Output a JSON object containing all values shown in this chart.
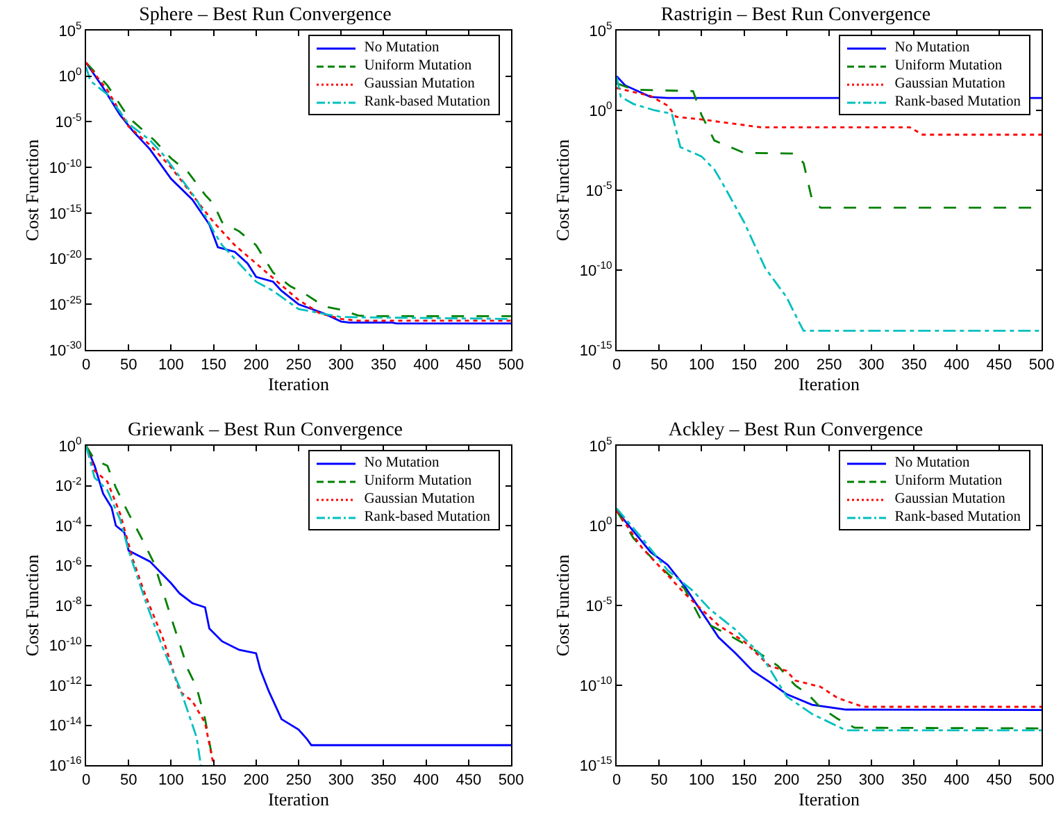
{
  "chart_data": [
    {
      "type": "line",
      "title": "Sphere – Best Run Convergence",
      "xlabel": "Iteration",
      "ylabel": "Cost Function",
      "log": "y",
      "grid": false,
      "legend": "top right",
      "marker": "none",
      "xlim": [
        0,
        500
      ],
      "xticks": [
        0,
        50,
        100,
        150,
        200,
        250,
        300,
        350,
        400,
        450,
        500
      ],
      "ylim": [
        1e-30,
        100000.0
      ],
      "yticks": [
        {
          "value": 1e-30,
          "label": "10$^{-30}$"
        },
        {
          "value": 1e-25,
          "label": "10$^{-25}$"
        },
        {
          "value": 1e-20,
          "label": "10$^{-20}$"
        },
        {
          "value": 1e-15,
          "label": "10$^{-15}$"
        },
        {
          "value": 1e-10,
          "label": "10$^{-10}$"
        },
        {
          "value": 1e-05,
          "label": "10$^{-5}$"
        },
        {
          "value": 1,
          "label": "10$^{0}$"
        },
        {
          "value": 100000.0,
          "label": "10$^{5}$"
        }
      ],
      "series": [
        {
          "name": "No Mutation",
          "color": "#0000ff",
          "line_style": "solid",
          "x": [
            0,
            20,
            40,
            55,
            75,
            100,
            125,
            145,
            155,
            175,
            190,
            200,
            220,
            230,
            250,
            280,
            300,
            310,
            360,
            365,
            500
          ],
          "values": [
            30,
            0.056,
            5.6e-05,
            1e-06,
            1e-08,
            5.6e-12,
            3e-14,
            5.6e-17,
            1.8e-19,
            5.6e-20,
            3e-21,
            1e-22,
            3e-23,
            3e-24,
            1e-25,
            1e-26,
            1.3e-27,
            1e-27,
            1e-27,
            8e-28,
            8e-28
          ]
        },
        {
          "name": "Uniform Mutation",
          "color": "#008000",
          "line_style": "dashed",
          "x": [
            0,
            25,
            50,
            80,
            100,
            120,
            140,
            150,
            160,
            180,
            200,
            220,
            240,
            260,
            280,
            300,
            320,
            330,
            500
          ],
          "values": [
            30,
            0.1,
            3e-05,
            1e-07,
            1e-09,
            3e-11,
            1e-13,
            1e-14,
            1e-16,
            1e-17,
            3e-19,
            3e-22,
            1e-23,
            1e-24,
            6e-26,
            2.5e-26,
            6e-27,
            5e-27,
            5e-27
          ]
        },
        {
          "name": "Gaussian Mutation",
          "color": "#ff0000",
          "line_style": "dotted",
          "x": [
            0,
            25,
            50,
            75,
            100,
            125,
            150,
            175,
            200,
            225,
            250,
            275,
            300,
            320,
            500
          ],
          "values": [
            30,
            0.03,
            3e-06,
            3e-08,
            1e-10,
            1e-13,
            1e-16,
            3e-19,
            3e-21,
            3e-23,
            3e-25,
            1e-26,
            2.5e-27,
            1.6e-27,
            1.6e-27
          ]
        },
        {
          "name": "Rank-based Mutation",
          "color": "#00bfbf",
          "line_style": "dashdot",
          "x": [
            0,
            5,
            25,
            50,
            75,
            90,
            110,
            130,
            150,
            160,
            180,
            200,
            220,
            250,
            300,
            500
          ],
          "values": [
            10,
            0.3,
            0.01,
            6e-06,
            1e-07,
            3e-09,
            1e-11,
            3e-14,
            1e-17,
            3e-19,
            3e-21,
            3e-23,
            3e-24,
            3e-26,
            4e-27,
            2.5e-27
          ]
        }
      ]
    },
    {
      "type": "line",
      "title": "Rastrigin – Best Run Convergence",
      "xlabel": "Iteration",
      "ylabel": "Cost Function",
      "log": "y",
      "grid": false,
      "legend": "top right",
      "marker": "none",
      "xlim": [
        0,
        500
      ],
      "xticks": [
        0,
        50,
        100,
        150,
        200,
        250,
        300,
        350,
        400,
        450,
        500
      ],
      "ylim": [
        1e-15,
        100000.0
      ],
      "yticks": [
        {
          "value": 1e-15,
          "label": "10$^{-15}$"
        },
        {
          "value": 1e-10,
          "label": "10$^{-10}$"
        },
        {
          "value": 1e-05,
          "label": "10$^{-5}$"
        },
        {
          "value": 1,
          "label": "10$^{0}$"
        },
        {
          "value": 100000.0,
          "label": "10$^{5}$"
        }
      ],
      "series": [
        {
          "name": "No Mutation",
          "color": "#0000ff",
          "line_style": "solid",
          "x": [
            0,
            10,
            40,
            60,
            500
          ],
          "values": [
            140,
            37,
            7,
            6,
            6
          ]
        },
        {
          "name": "Uniform Mutation",
          "color": "#008000",
          "line_style": "dashed",
          "x": [
            0,
            20,
            90,
            100,
            115,
            150,
            210,
            220,
            230,
            240,
            500
          ],
          "values": [
            50,
            20,
            16,
            0.5,
            0.013,
            0.0022,
            0.002,
            0.0005,
            2.5e-06,
            8e-07,
            8e-07
          ]
        },
        {
          "name": "Gaussian Mutation",
          "color": "#ff0000",
          "line_style": "dotted",
          "x": [
            0,
            40,
            60,
            70,
            100,
            170,
            345,
            360,
            500
          ],
          "values": [
            25,
            8,
            2,
            0.4,
            0.27,
            0.087,
            0.087,
            0.03,
            0.03
          ]
        },
        {
          "name": "Rank-based Mutation",
          "color": "#00bfbf",
          "line_style": "dashdot",
          "x": [
            0,
            5,
            20,
            45,
            65,
            75,
            100,
            115,
            125,
            150,
            175,
            200,
            215,
            220,
            500
          ],
          "values": [
            126,
            7,
            2.5,
            1,
            0.63,
            0.005,
            0.0013,
            0.0002,
            2.5e-05,
            1e-07,
            1.3e-10,
            2e-12,
            5e-14,
            1.6e-14,
            1.6e-14
          ]
        }
      ]
    },
    {
      "type": "line",
      "title": "Griewank – Best Run Convergence",
      "xlabel": "Iteration",
      "ylabel": "Cost Function",
      "log": "y",
      "grid": false,
      "legend": "top right",
      "marker": "none",
      "xlim": [
        0,
        500
      ],
      "xticks": [
        0,
        50,
        100,
        150,
        200,
        250,
        300,
        350,
        400,
        450,
        500
      ],
      "ylim": [
        1e-16,
        1
      ],
      "yticks": [
        {
          "value": 1e-16,
          "label": "10$^{-16}$"
        },
        {
          "value": 1e-14,
          "label": "10$^{-14}$"
        },
        {
          "value": 1e-12,
          "label": "10$^{-12}$"
        },
        {
          "value": 1e-10,
          "label": "10$^{-10}$"
        },
        {
          "value": 1e-08,
          "label": "10$^{-8}$"
        },
        {
          "value": 1e-06,
          "label": "10$^{-6}$"
        },
        {
          "value": 0.0001,
          "label": "10$^{-4}$"
        },
        {
          "value": 0.01,
          "label": "10$^{-2}$"
        },
        {
          "value": 1,
          "label": "10$^{0}$"
        }
      ],
      "series": [
        {
          "name": "No Mutation",
          "color": "#0000ff",
          "line_style": "solid",
          "x": [
            0,
            10,
            20,
            30,
            35,
            45,
            50,
            75,
            100,
            110,
            125,
            140,
            145,
            160,
            180,
            200,
            205,
            215,
            230,
            250,
            260,
            265,
            500
          ],
          "values": [
            1,
            0.1,
            0.004,
            0.0008,
            0.0001,
            4.5e-05,
            5.6e-06,
            1.6e-06,
            1.3e-07,
            4e-08,
            1.3e-08,
            8e-09,
            7e-10,
            1.6e-10,
            6e-11,
            4e-11,
            6e-12,
            5e-13,
            2e-14,
            6e-15,
            2e-15,
            1e-15,
            1e-15
          ]
        },
        {
          "name": "Uniform Mutation",
          "color": "#008000",
          "line_style": "dashed",
          "x": [
            0,
            10,
            25,
            35,
            50,
            65,
            80,
            100,
            120,
            130,
            140,
            148,
            150
          ],
          "values": [
            1,
            0.2,
            0.1,
            0.008,
            0.0004,
            2.5e-05,
            1.3e-06,
            2.5e-09,
            6e-12,
            8e-13,
            2e-14,
            3e-16,
            1e-16
          ]
        },
        {
          "name": "Gaussian Mutation",
          "color": "#ff0000",
          "line_style": "dotted",
          "x": [
            0,
            10,
            25,
            40,
            55,
            70,
            90,
            110,
            125,
            140,
            150
          ],
          "values": [
            1,
            0.056,
            0.016,
            0.0004,
            2e-06,
            3e-08,
            2.5e-10,
            5e-13,
            1.6e-13,
            1.3e-14,
            1e-16
          ]
        },
        {
          "name": "Rank-based Mutation",
          "color": "#00bfbf",
          "line_style": "dashdot",
          "x": [
            0,
            10,
            25,
            40,
            50,
            70,
            90,
            110,
            130,
            135
          ],
          "values": [
            1,
            0.025,
            0.006,
            0.0002,
            5.6e-06,
            1.6e-08,
            8e-11,
            8e-13,
            2.5e-15,
            1e-16
          ]
        }
      ]
    },
    {
      "type": "line",
      "title": "Ackley – Best Run Convergence",
      "xlabel": "Iteration",
      "ylabel": "Cost Function",
      "log": "y",
      "grid": false,
      "legend": "top right",
      "marker": "none",
      "xlim": [
        0,
        500
      ],
      "xticks": [
        0,
        50,
        100,
        150,
        200,
        250,
        300,
        350,
        400,
        450,
        500
      ],
      "ylim": [
        1e-15,
        100000.0
      ],
      "yticks": [
        {
          "value": 1e-15,
          "label": "10$^{-15}$"
        },
        {
          "value": 1e-10,
          "label": "10$^{-10}$"
        },
        {
          "value": 1e-05,
          "label": "10$^{-5}$"
        },
        {
          "value": 1,
          "label": "10$^{0}$"
        },
        {
          "value": 100000.0,
          "label": "10$^{5}$"
        }
      ],
      "series": [
        {
          "name": "No Mutation",
          "color": "#0000ff",
          "line_style": "solid",
          "x": [
            0,
            20,
            40,
            60,
            80,
            100,
            120,
            140,
            160,
            180,
            200,
            230,
            270,
            500
          ],
          "values": [
            8.5,
            0.43,
            0.022,
            0.0035,
            0.00016,
            4e-06,
            1e-07,
            1e-08,
            8e-10,
            1.6e-10,
            2.8e-11,
            6e-12,
            3e-12,
            2.8e-12
          ]
        },
        {
          "name": "Uniform Mutation",
          "color": "#008000",
          "line_style": "dashed",
          "x": [
            0,
            20,
            50,
            80,
            100,
            130,
            160,
            190,
            210,
            225,
            240,
            260,
            280,
            500
          ],
          "values": [
            8.5,
            0.16,
            0.003,
            0.00011,
            1.1e-06,
            1.6e-07,
            2e-08,
            1.6e-09,
            1e-10,
            2.8e-11,
            4e-12,
            8e-13,
            2.2e-13,
            2e-13
          ]
        },
        {
          "name": "Gaussian Mutation",
          "color": "#ff0000",
          "line_style": "dotted",
          "x": [
            0,
            30,
            60,
            80,
            120,
            150,
            180,
            200,
            210,
            240,
            260,
            290,
            500
          ],
          "values": [
            8.5,
            0.04,
            0.0008,
            5.6e-05,
            5.6e-07,
            5.6e-08,
            1.6e-09,
            8e-10,
            2e-10,
            8e-11,
            1.6e-11,
            4.5e-12,
            4.5e-12
          ]
        },
        {
          "name": "Rank-based Mutation",
          "color": "#00bfbf",
          "line_style": "dashdot",
          "x": [
            0,
            30,
            60,
            90,
            110,
            140,
            170,
            200,
            230,
            270,
            500
          ],
          "values": [
            12,
            0.16,
            0.0016,
            8e-05,
            5.6e-06,
            3e-07,
            8e-09,
            2e-11,
            1.6e-12,
            1.5e-13,
            1.5e-13
          ]
        }
      ]
    }
  ]
}
